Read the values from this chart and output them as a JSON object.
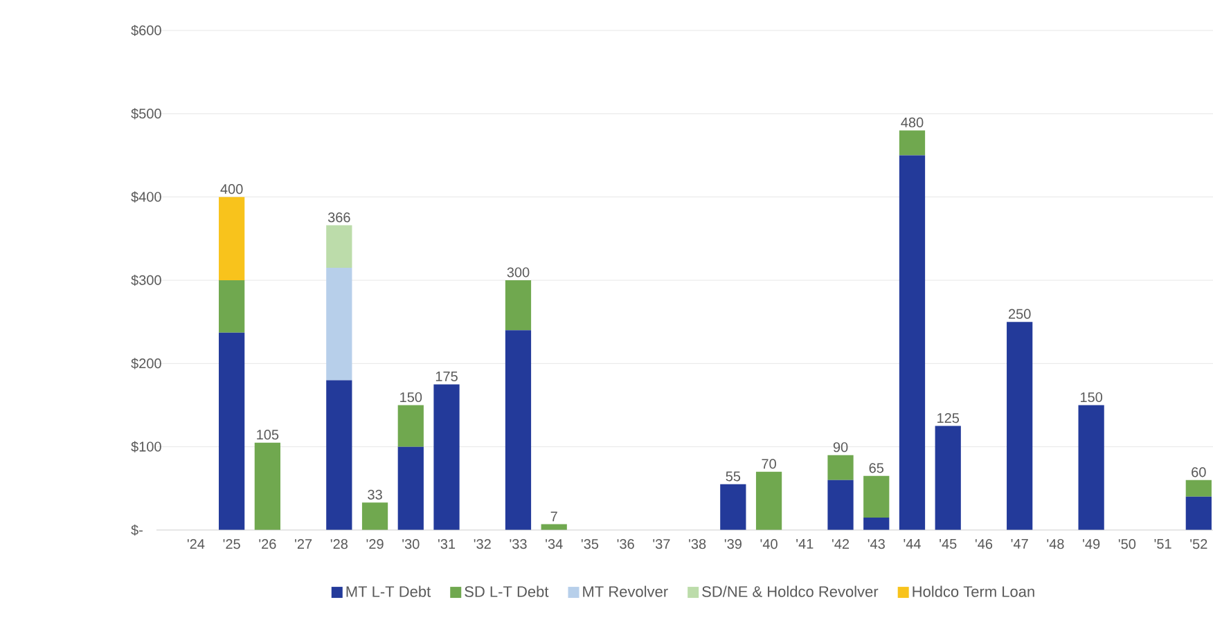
{
  "chart_data": {
    "type": "bar",
    "stacked": true,
    "categories": [
      "'24",
      "'25",
      "'26",
      "'27",
      "'28",
      "'29",
      "'30",
      "'31",
      "'32",
      "'33",
      "'34",
      "'35",
      "'36",
      "'37",
      "'38",
      "'39",
      "'40",
      "'41",
      "'42",
      "'43",
      "'44",
      "'45",
      "'46",
      "'47",
      "'48",
      "'49",
      "'50",
      "'51",
      "'52"
    ],
    "series": [
      {
        "name": "MT L-T Debt",
        "color": "#233a9a",
        "values": [
          null,
          237,
          null,
          null,
          180,
          null,
          100,
          175,
          null,
          240,
          null,
          null,
          null,
          null,
          null,
          55,
          null,
          null,
          60,
          15,
          450,
          125,
          null,
          250,
          null,
          150,
          null,
          null,
          40
        ]
      },
      {
        "name": "SD L-T Debt",
        "color": "#70a84f",
        "values": [
          null,
          63,
          105,
          null,
          null,
          33,
          50,
          null,
          null,
          60,
          7,
          null,
          null,
          null,
          null,
          null,
          70,
          null,
          30,
          50,
          30,
          null,
          null,
          null,
          null,
          null,
          null,
          null,
          20
        ]
      },
      {
        "name": "MT Revolver",
        "color": "#b7cfea",
        "values": [
          null,
          null,
          null,
          null,
          135,
          null,
          null,
          null,
          null,
          null,
          null,
          null,
          null,
          null,
          null,
          null,
          null,
          null,
          null,
          null,
          null,
          null,
          null,
          null,
          null,
          null,
          null,
          null,
          null
        ]
      },
      {
        "name": "SD/NE & Holdco Revolver",
        "color": "#bcdcaa",
        "values": [
          null,
          null,
          null,
          null,
          51,
          null,
          null,
          null,
          null,
          null,
          null,
          null,
          null,
          null,
          null,
          null,
          null,
          null,
          null,
          null,
          null,
          null,
          null,
          null,
          null,
          null,
          null,
          null,
          null
        ]
      },
      {
        "name": "Holdco Term Loan",
        "color": "#f8c31c",
        "values": [
          null,
          100,
          null,
          null,
          null,
          null,
          null,
          null,
          null,
          null,
          null,
          null,
          null,
          null,
          null,
          null,
          null,
          null,
          null,
          null,
          null,
          null,
          null,
          null,
          null,
          null,
          null,
          null,
          null
        ]
      }
    ],
    "totals": [
      null,
      "400",
      "105",
      null,
      "366",
      "33",
      "150",
      "175",
      null,
      "300",
      "7",
      null,
      null,
      null,
      null,
      "55",
      "70",
      null,
      "90",
      "65",
      "480",
      "125",
      null,
      "250",
      null,
      "150",
      null,
      null,
      "60"
    ],
    "ylim": [
      0,
      600
    ],
    "yticks": [
      {
        "value": 0,
        "label": "$-"
      },
      {
        "value": 100,
        "label": "$100"
      },
      {
        "value": 200,
        "label": "$200"
      },
      {
        "value": 300,
        "label": "$300"
      },
      {
        "value": 400,
        "label": "$400"
      },
      {
        "value": 500,
        "label": "$500"
      },
      {
        "value": 600,
        "label": "$600"
      }
    ],
    "grid": "y",
    "legend": "bottom"
  }
}
